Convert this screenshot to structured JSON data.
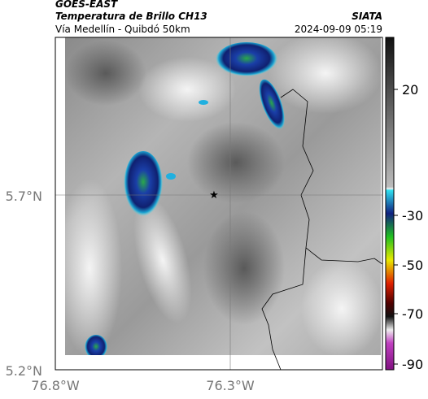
{
  "header": {
    "satellite": "GOES-EAST",
    "product": "Temperatura de Brillo CH13",
    "source": "SIATA",
    "route": "Vía Medellín - Quibdó 50km",
    "timestamp": "2024-09-09 05:19"
  },
  "map": {
    "lat_labels": [
      "5.7°N",
      "5.2°N"
    ],
    "lon_labels": [
      "76.8°W",
      "76.3°W"
    ]
  },
  "colorbar": {
    "ticks": [
      "20",
      "-30",
      "-50",
      "-70",
      "-90"
    ]
  }
}
